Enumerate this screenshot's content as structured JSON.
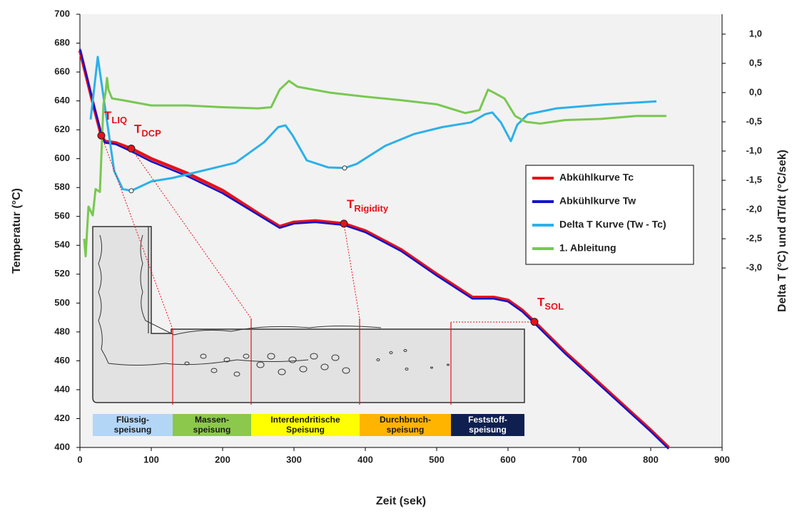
{
  "chart_data": {
    "type": "line",
    "xlabel": "Zeit (sek)",
    "ylabel": "Temperatur (°C)",
    "y2label": "Delta T (°C) und dT/dt (°C/sek)",
    "xlim": [
      0,
      900
    ],
    "xticks": [
      0,
      100,
      200,
      300,
      400,
      500,
      600,
      700,
      800,
      900
    ],
    "ylim": [
      400,
      700
    ],
    "yticks": [
      400,
      420,
      440,
      460,
      480,
      500,
      520,
      540,
      560,
      580,
      600,
      620,
      640,
      660,
      680,
      700
    ],
    "y2lim": [
      -6.07,
      1.34
    ],
    "y2ticks": [
      {
        "value": 1,
        "label": "1,0"
      },
      {
        "value": 0.5,
        "label": "0,5"
      },
      {
        "value": 0,
        "label": "0,0"
      },
      {
        "value": -0.5,
        "label": "-0,5"
      },
      {
        "value": -1,
        "label": "-1,0"
      },
      {
        "value": -1.5,
        "label": "-1,5"
      },
      {
        "value": -2,
        "label": "-2,0"
      },
      {
        "value": -2.5,
        "label": "-2,5"
      },
      {
        "value": -3,
        "label": "-3,0"
      }
    ],
    "grid": false,
    "legend": "center right",
    "series": [
      {
        "name": "Abkühlkurve Tc",
        "color": "#e8111a",
        "x": [
          0,
          10,
          20,
          30,
          35,
          50,
          72,
          100,
          150,
          200,
          250,
          280,
          300,
          330,
          370,
          400,
          450,
          500,
          550,
          580,
          600,
          620,
          637,
          680,
          720,
          760,
          800,
          825
        ],
        "values": [
          675,
          655,
          635,
          616,
          612,
          611,
          607,
          600,
          590,
          578,
          562,
          553,
          556,
          557,
          555,
          550,
          537,
          520,
          504,
          504,
          502,
          495,
          487,
          466,
          448,
          430,
          412,
          400
        ]
      },
      {
        "name": "Abkühlkurve Tw",
        "color": "#1414c8",
        "x": [
          0,
          10,
          20,
          30,
          35,
          50,
          72,
          100,
          150,
          200,
          250,
          280,
          300,
          330,
          370,
          400,
          450,
          500,
          550,
          580,
          600,
          620,
          637,
          680,
          720,
          760,
          800,
          825
        ],
        "values": [
          676,
          656,
          636,
          617,
          611,
          610,
          605,
          598,
          588,
          576,
          561,
          552,
          555,
          556,
          554,
          549,
          536,
          519,
          503,
          503,
          501,
          494,
          486,
          465,
          447,
          429,
          411,
          399
        ]
      },
      {
        "name": "Delta T Kurve (Tw - Tc)",
        "color": "#2cb0ea",
        "axis": "y2",
        "x": [
          15,
          25,
          38,
          48,
          60,
          72,
          100,
          130,
          218,
          258,
          278,
          288,
          298,
          318,
          348,
          371,
          388,
          428,
          468,
          508,
          548,
          568,
          578,
          590,
          604,
          613,
          628,
          668,
          738,
          808
        ],
        "values": [
          -0.46,
          0.61,
          -0.49,
          -1.34,
          -1.65,
          -1.68,
          -1.52,
          -1.46,
          -1.2,
          -0.85,
          -0.59,
          -0.56,
          -0.73,
          -1.16,
          -1.28,
          -1.29,
          -1.22,
          -0.91,
          -0.71,
          -0.59,
          -0.51,
          -0.37,
          -0.34,
          -0.51,
          -0.83,
          -0.55,
          -0.37,
          -0.27,
          -0.2,
          -0.15
        ]
      },
      {
        "name": "1. Ableitung",
        "color": "#78c850",
        "axis": "y2",
        "x": [
          6,
          8,
          12,
          18,
          22,
          28,
          33,
          36,
          38,
          40,
          45,
          60,
          100,
          150,
          200,
          250,
          268,
          280,
          293,
          305,
          350,
          400,
          450,
          500,
          540,
          560,
          572,
          580,
          595,
          610,
          625,
          645,
          680,
          730,
          780,
          822
        ],
        "values": [
          -2.5,
          -2.8,
          -1.95,
          -2.1,
          -1.65,
          -1.7,
          -0.2,
          0.0,
          0.25,
          0.05,
          -0.1,
          -0.13,
          -0.22,
          -0.22,
          -0.25,
          -0.27,
          -0.25,
          0.05,
          0.2,
          0.1,
          0.0,
          -0.07,
          -0.13,
          -0.2,
          -0.35,
          -0.3,
          0.05,
          0.0,
          -0.1,
          -0.4,
          -0.5,
          -0.53,
          -0.47,
          -0.45,
          -0.4,
          -0.4
        ]
      }
    ],
    "annotations": [
      {
        "main": "T",
        "sub": "LIQ",
        "x": 30,
        "y": 616
      },
      {
        "main": "T",
        "sub": "DCP",
        "x": 72,
        "y": 607
      },
      {
        "main": "T",
        "sub": "Rigidity",
        "x": 370,
        "y": 555
      },
      {
        "main": "T",
        "sub": "SOL",
        "x": 637,
        "y": 487
      }
    ],
    "feeding_zones": [
      {
        "label": [
          "Flüssig-",
          "speisung"
        ],
        "start": 18,
        "end": 130,
        "color": "#b4d6f6",
        "text_color": "#1a1a1a"
      },
      {
        "label": [
          "Massen-",
          "speisung"
        ],
        "start": 130,
        "end": 240,
        "color": "#8cc84b",
        "text_color": "#1a1a1a"
      },
      {
        "label": [
          "Interdendritische",
          "Speisung"
        ],
        "start": 240,
        "end": 392,
        "color": "#ffff00",
        "text_color": "#1a1a1a"
      },
      {
        "label": [
          "Durchbruch-",
          "speisung"
        ],
        "start": 392,
        "end": 520,
        "color": "#ffb400",
        "text_color": "#1a1a1a"
      },
      {
        "label": [
          "Feststoff-",
          "speisung"
        ],
        "start": 520,
        "end": 623,
        "color": "#0f2050",
        "text_color": "#ffffff"
      }
    ]
  }
}
